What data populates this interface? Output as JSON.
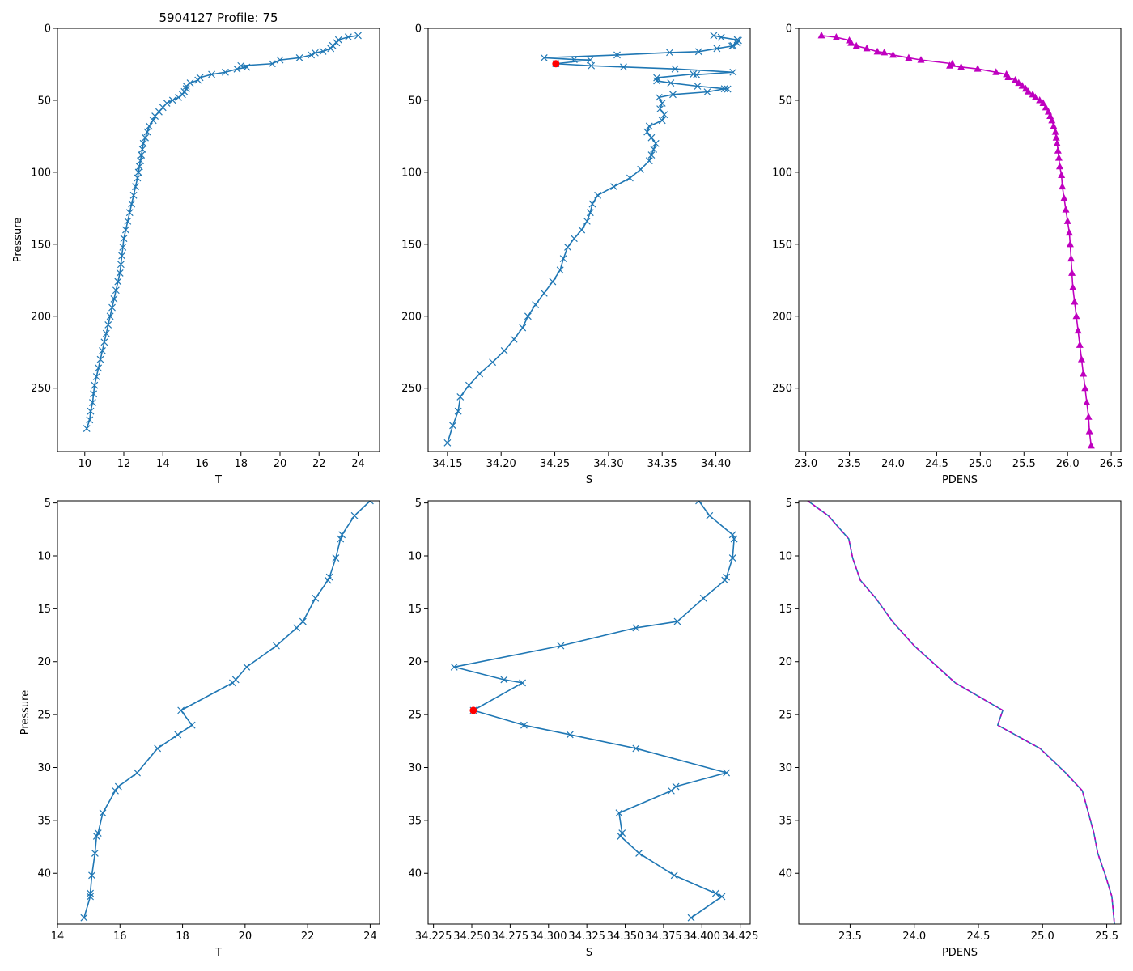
{
  "colors": {
    "series": "#1f77b4",
    "density": "#bf00bf",
    "highlight": "#ff0000",
    "axis": "#000000",
    "background": "#ffffff"
  },
  "chart_data": [
    {
      "type": "line",
      "name": "temp-full",
      "title": "5904127 Profile: 75",
      "xlabel": "T",
      "ylabel": "Pressure",
      "xlim": [
        8.6,
        25.1
      ],
      "ylim": [
        294,
        0
      ],
      "xticks": [
        10,
        12,
        14,
        16,
        18,
        20,
        22,
        24
      ],
      "xtick_labels": [
        "10",
        "12",
        "14",
        "16",
        "18",
        "20",
        "22",
        "24"
      ],
      "yticks": [
        0,
        50,
        100,
        150,
        200,
        250
      ],
      "ytick_labels": [
        "0",
        "50",
        "100",
        "150",
        "200",
        "250"
      ],
      "marker": "x",
      "series": [
        {
          "name": "T",
          "x": [
            24.0,
            23.5,
            23.0,
            22.9,
            22.7,
            22.6,
            22.2,
            21.8,
            21.6,
            21.0,
            20.0,
            19.6,
            18.0,
            18.3,
            17.8,
            17.2,
            16.5,
            15.9,
            15.8,
            15.4,
            15.2,
            15.2,
            15.1,
            15.0,
            14.8,
            14.5,
            14.2,
            14.0,
            13.8,
            13.6,
            13.5,
            13.3,
            13.2,
            13.1,
            13.0,
            12.95,
            12.9,
            12.85,
            12.8,
            12.75,
            12.7,
            12.6,
            12.5,
            12.4,
            12.3,
            12.2,
            12.1,
            12.0,
            11.95,
            11.9,
            11.85,
            11.8,
            11.7,
            11.6,
            11.5,
            11.4,
            11.3,
            11.2,
            11.1,
            11.0,
            10.9,
            10.8,
            10.7,
            10.6,
            10.5,
            10.45,
            10.4,
            10.3,
            10.25,
            10.1
          ],
          "y": [
            5,
            6,
            8,
            10,
            12,
            14,
            16,
            17,
            18.5,
            20.5,
            22,
            24.6,
            26,
            27,
            28.3,
            30.5,
            32,
            34.2,
            36,
            38,
            40.2,
            42,
            44,
            46,
            48,
            50,
            52,
            55,
            58,
            61,
            64,
            68,
            72,
            76,
            80,
            84,
            88,
            92,
            96,
            100,
            104,
            110,
            116,
            122,
            128,
            134,
            140,
            146,
            152,
            158,
            164,
            170,
            176,
            182,
            188,
            194,
            200,
            206,
            212,
            218,
            224,
            230,
            236,
            242,
            248,
            254,
            260,
            266,
            272,
            278
          ]
        }
      ]
    },
    {
      "type": "line",
      "name": "sal-full",
      "xlabel": "S",
      "ylabel": "",
      "xlim": [
        34.132,
        34.432
      ],
      "ylim": [
        294,
        0
      ],
      "xticks": [
        34.15,
        34.2,
        34.25,
        34.3,
        34.35,
        34.4
      ],
      "xtick_labels": [
        "34.15",
        "34.20",
        "34.25",
        "34.30",
        "34.35",
        "34.40"
      ],
      "yticks": [
        0,
        50,
        100,
        150,
        200,
        250
      ],
      "ytick_labels": [
        "0",
        "50",
        "100",
        "150",
        "200",
        "250"
      ],
      "marker": "x",
      "series": [
        {
          "name": "S",
          "x": [
            34.398,
            34.405,
            34.42,
            34.421,
            34.42,
            34.416,
            34.415,
            34.401,
            34.384,
            34.357,
            34.308,
            34.24,
            34.268,
            34.283,
            34.251,
            34.284,
            34.314,
            34.362,
            34.416,
            34.382,
            34.379,
            34.345,
            34.345,
            34.358,
            34.383,
            34.411,
            34.408,
            34.392,
            34.36,
            34.347,
            34.35,
            34.348,
            34.352,
            34.35,
            34.338,
            34.336,
            34.34,
            34.344,
            34.342,
            34.34,
            34.338,
            34.33,
            34.32,
            34.305,
            34.29,
            34.285,
            34.283,
            34.28,
            34.275,
            34.268,
            34.262,
            34.258,
            34.255,
            34.248,
            34.24,
            34.232,
            34.225,
            34.22,
            34.212,
            34.203,
            34.192,
            34.18,
            34.17,
            34.162,
            34.16,
            34.155,
            34.15
          ],
          "y": [
            5,
            6.2,
            8,
            8.4,
            10.2,
            12,
            12.3,
            14,
            16.2,
            16.8,
            18.5,
            20.5,
            21.7,
            22,
            24.6,
            26,
            26.9,
            28.2,
            30.5,
            32.2,
            31.8,
            34.3,
            36.5,
            38,
            40.2,
            42.2,
            42,
            44.2,
            46,
            48,
            52,
            56,
            60,
            64,
            68,
            72,
            76,
            80,
            84,
            88,
            92,
            98,
            104,
            110,
            116,
            122,
            128,
            134,
            140,
            146,
            152,
            160,
            168,
            176,
            184,
            192,
            200,
            208,
            216,
            224,
            232,
            240,
            248,
            256,
            266,
            276,
            288
          ]
        }
      ],
      "highlight": {
        "x": 34.251,
        "y": 24.6
      }
    },
    {
      "type": "line",
      "name": "dens-full",
      "xlabel": "PDENS",
      "ylabel": "",
      "xlim": [
        22.92,
        26.61
      ],
      "ylim": [
        294,
        0
      ],
      "xticks": [
        23.0,
        23.5,
        24.0,
        24.5,
        25.0,
        25.5,
        26.0,
        26.5
      ],
      "xtick_labels": [
        "23.0",
        "23.5",
        "24.0",
        "24.5",
        "25.0",
        "25.5",
        "26.0",
        "26.5"
      ],
      "yticks": [
        0,
        50,
        100,
        150,
        200,
        250
      ],
      "ytick_labels": [
        "0",
        "50",
        "100",
        "150",
        "200",
        "250"
      ],
      "marker": "^",
      "series": [
        {
          "name": "PDENS",
          "x": [
            23.18,
            23.35,
            23.5,
            23.52,
            23.58,
            23.7,
            23.82,
            23.9,
            24.0,
            24.18,
            24.32,
            24.68,
            24.65,
            24.78,
            24.97,
            25.18,
            25.3,
            25.32,
            25.4,
            25.44,
            25.48,
            25.52,
            25.55,
            25.6,
            25.63,
            25.68,
            25.72,
            25.75,
            25.78,
            25.8,
            25.82,
            25.84,
            25.86,
            25.87,
            25.88,
            25.89,
            25.9,
            25.91,
            25.93,
            25.94,
            25.96,
            25.98,
            26.0,
            26.02,
            26.03,
            26.04,
            26.05,
            26.06,
            26.08,
            26.1,
            26.12,
            26.14,
            26.16,
            26.18,
            26.2,
            26.22,
            26.24,
            26.25,
            26.27
          ],
          "y": [
            5,
            6.2,
            8.4,
            10.2,
            12.2,
            14,
            16.2,
            16.8,
            18.5,
            20.5,
            22,
            24.6,
            26,
            26.9,
            28.2,
            30.5,
            32,
            34,
            36,
            38,
            40,
            42,
            44,
            46,
            48,
            50,
            52,
            55,
            58,
            61,
            64,
            68,
            72,
            76,
            80,
            85,
            90,
            96,
            102,
            110,
            118,
            126,
            134,
            142,
            150,
            160,
            170,
            180,
            190,
            200,
            210,
            220,
            230,
            240,
            250,
            260,
            270,
            280,
            290
          ]
        }
      ]
    },
    {
      "type": "line",
      "name": "temp-zoom",
      "xlabel": "T",
      "ylabel": "Pressure",
      "xlim": [
        14.0,
        24.3
      ],
      "ylim": [
        44.8,
        4.8
      ],
      "xticks": [
        14,
        16,
        18,
        20,
        22,
        24
      ],
      "xtick_labels": [
        "14",
        "16",
        "18",
        "20",
        "22",
        "24"
      ],
      "yticks": [
        5,
        10,
        15,
        20,
        25,
        30,
        35,
        40
      ],
      "ytick_labels": [
        "5",
        "10",
        "15",
        "20",
        "25",
        "30",
        "35",
        "40"
      ],
      "marker": "x",
      "series": [
        {
          "name": "T",
          "x": [
            24.0,
            23.5,
            23.1,
            23.05,
            22.9,
            22.7,
            22.65,
            22.25,
            21.85,
            21.65,
            21.0,
            20.05,
            19.7,
            19.6,
            17.95,
            18.3,
            17.85,
            17.2,
            16.55,
            15.95,
            15.85,
            15.45,
            15.3,
            15.25,
            15.2,
            15.1,
            15.05,
            15.05,
            14.85
          ],
          "y": [
            4.8,
            6.2,
            8.0,
            8.4,
            10.2,
            12.0,
            12.3,
            14.0,
            16.2,
            16.8,
            18.5,
            20.5,
            21.7,
            22.0,
            24.6,
            26.0,
            26.9,
            28.2,
            30.5,
            31.8,
            32.2,
            34.3,
            36.2,
            36.5,
            38.1,
            40.2,
            41.9,
            42.2,
            44.2
          ]
        }
      ]
    },
    {
      "type": "line",
      "name": "sal-zoom",
      "xlabel": "S",
      "ylabel": "",
      "xlim": [
        34.2215,
        34.4315
      ],
      "ylim": [
        44.8,
        4.8
      ],
      "xticks": [
        34.225,
        34.25,
        34.275,
        34.3,
        34.325,
        34.35,
        34.375,
        34.4,
        34.425
      ],
      "xtick_labels": [
        "34.225",
        "34.250",
        "34.275",
        "34.300",
        "34.325",
        "34.350",
        "34.375",
        "34.400",
        "34.425"
      ],
      "yticks": [
        5,
        10,
        15,
        20,
        25,
        30,
        35,
        40
      ],
      "ytick_labels": [
        "5",
        "10",
        "15",
        "20",
        "25",
        "30",
        "35",
        "40"
      ],
      "marker": "x",
      "series": [
        {
          "name": "S",
          "x": [
            34.398,
            34.405,
            34.42,
            34.421,
            34.42,
            34.416,
            34.415,
            34.401,
            34.384,
            34.357,
            34.308,
            34.2385,
            34.271,
            34.283,
            34.251,
            34.284,
            34.314,
            34.357,
            34.416,
            34.383,
            34.38,
            34.346,
            34.348,
            34.347,
            34.359,
            34.382,
            34.409,
            34.413,
            34.393
          ],
          "y": [
            4.8,
            6.2,
            8.0,
            8.4,
            10.2,
            12.0,
            12.3,
            14.0,
            16.2,
            16.8,
            18.5,
            20.5,
            21.7,
            22.0,
            24.6,
            26.0,
            26.9,
            28.2,
            30.5,
            31.8,
            32.2,
            34.3,
            36.2,
            36.5,
            38.1,
            40.2,
            41.9,
            42.2,
            44.2
          ]
        }
      ],
      "highlight": {
        "x": 34.251,
        "y": 24.6
      }
    },
    {
      "type": "line",
      "name": "dens-zoom",
      "xlabel": "PDENS",
      "ylabel": "",
      "xlim": [
        23.1,
        25.61
      ],
      "ylim": [
        44.8,
        4.8
      ],
      "xticks": [
        23.5,
        24.0,
        24.5,
        25.0,
        25.5
      ],
      "xtick_labels": [
        "23.5",
        "24.0",
        "24.5",
        "25.0",
        "25.5"
      ],
      "yticks": [
        5,
        10,
        15,
        20,
        25,
        30,
        35,
        40
      ],
      "ytick_labels": [
        "5",
        "10",
        "15",
        "20",
        "25",
        "30",
        "35",
        "40"
      ],
      "marker": "none",
      "dashed_overlay": true,
      "series": [
        {
          "name": "PDENS",
          "x": [
            23.17,
            23.33,
            23.49,
            23.52,
            23.58,
            23.7,
            23.83,
            24.0,
            24.32,
            24.69,
            24.65,
            24.98,
            25.18,
            25.31,
            25.4,
            25.43,
            25.49,
            25.54,
            25.56
          ],
          "y": [
            4.8,
            6.2,
            8.4,
            10.2,
            12.3,
            14.0,
            16.2,
            18.5,
            22.0,
            24.6,
            26.0,
            28.2,
            30.5,
            32.2,
            36.2,
            38.1,
            40.2,
            42.2,
            44.8
          ]
        }
      ]
    }
  ]
}
